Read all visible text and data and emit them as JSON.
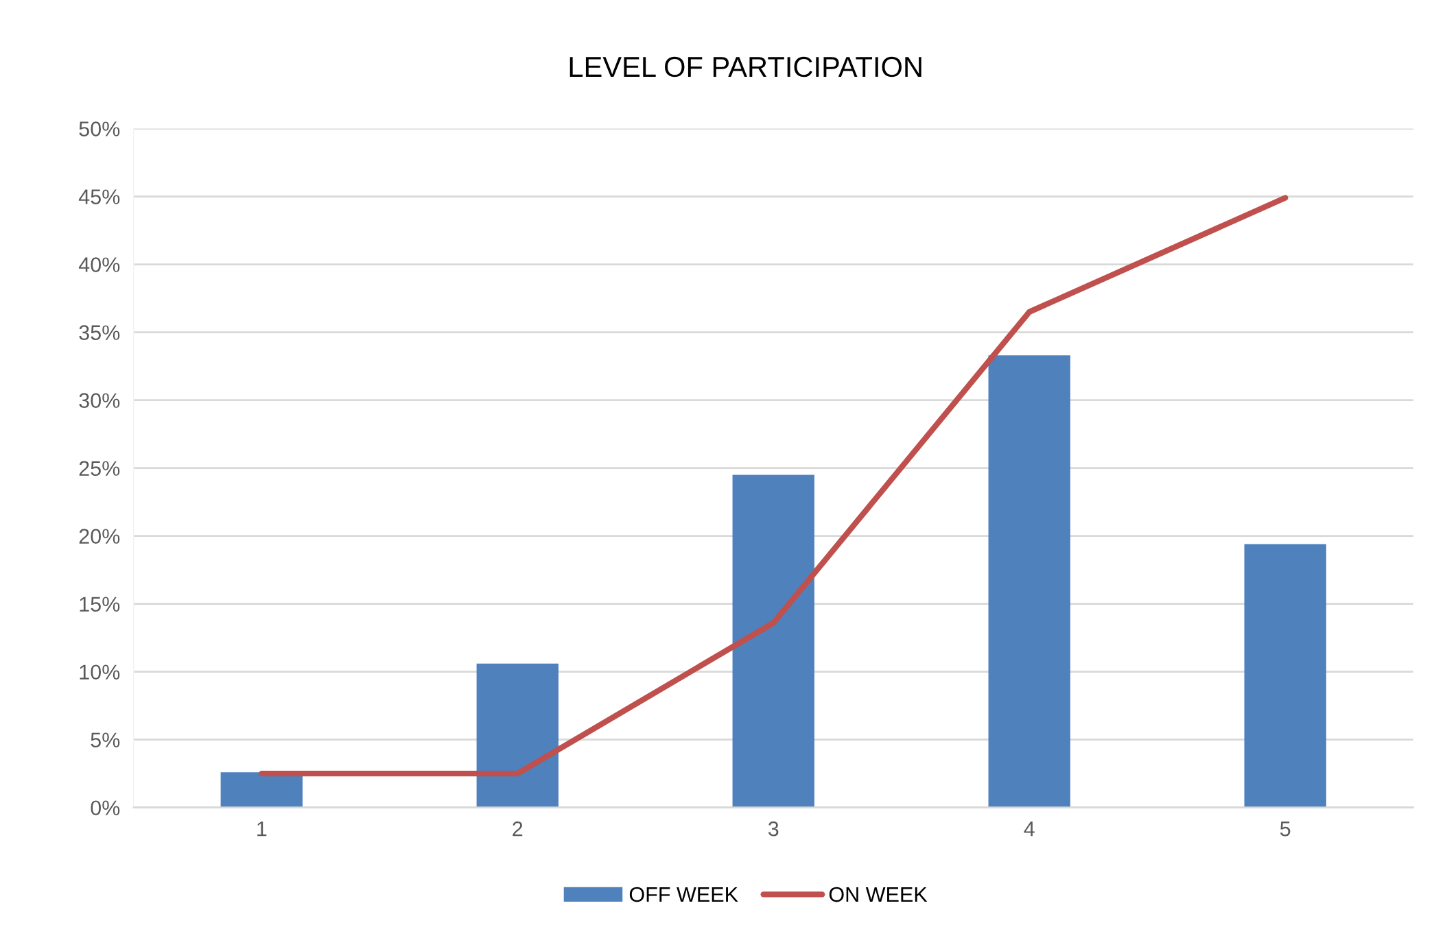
{
  "chart_data": {
    "type": "bar",
    "title": "LEVEL OF PARTICIPATION",
    "categories": [
      "1",
      "2",
      "3",
      "4",
      "5"
    ],
    "series": [
      {
        "name": "OFF WEEK",
        "color": "#4f81bd",
        "values": [
          2.6,
          10.6,
          24.5,
          33.3,
          19.4
        ]
      },
      {
        "name": "ON WEEK",
        "type": "line",
        "color": "#c0504d",
        "values": [
          2.5,
          2.5,
          13.6,
          36.5,
          44.9
        ]
      }
    ],
    "ylim": [
      0,
      50
    ],
    "yticks": [
      {
        "value": 0,
        "label": "0%"
      },
      {
        "value": 5,
        "label": "5%"
      },
      {
        "value": 10,
        "label": "10%"
      },
      {
        "value": 15,
        "label": "15%"
      },
      {
        "value": 20,
        "label": "20%"
      },
      {
        "value": 25,
        "label": "25%"
      },
      {
        "value": 30,
        "label": "30%"
      },
      {
        "value": 35,
        "label": "35%"
      },
      {
        "value": 40,
        "label": "40%"
      },
      {
        "value": 45,
        "label": "45%"
      },
      {
        "value": 50,
        "label": "50%"
      }
    ],
    "grid": "y",
    "legend": "bottom",
    "marker": "none",
    "line_style": "solid"
  }
}
